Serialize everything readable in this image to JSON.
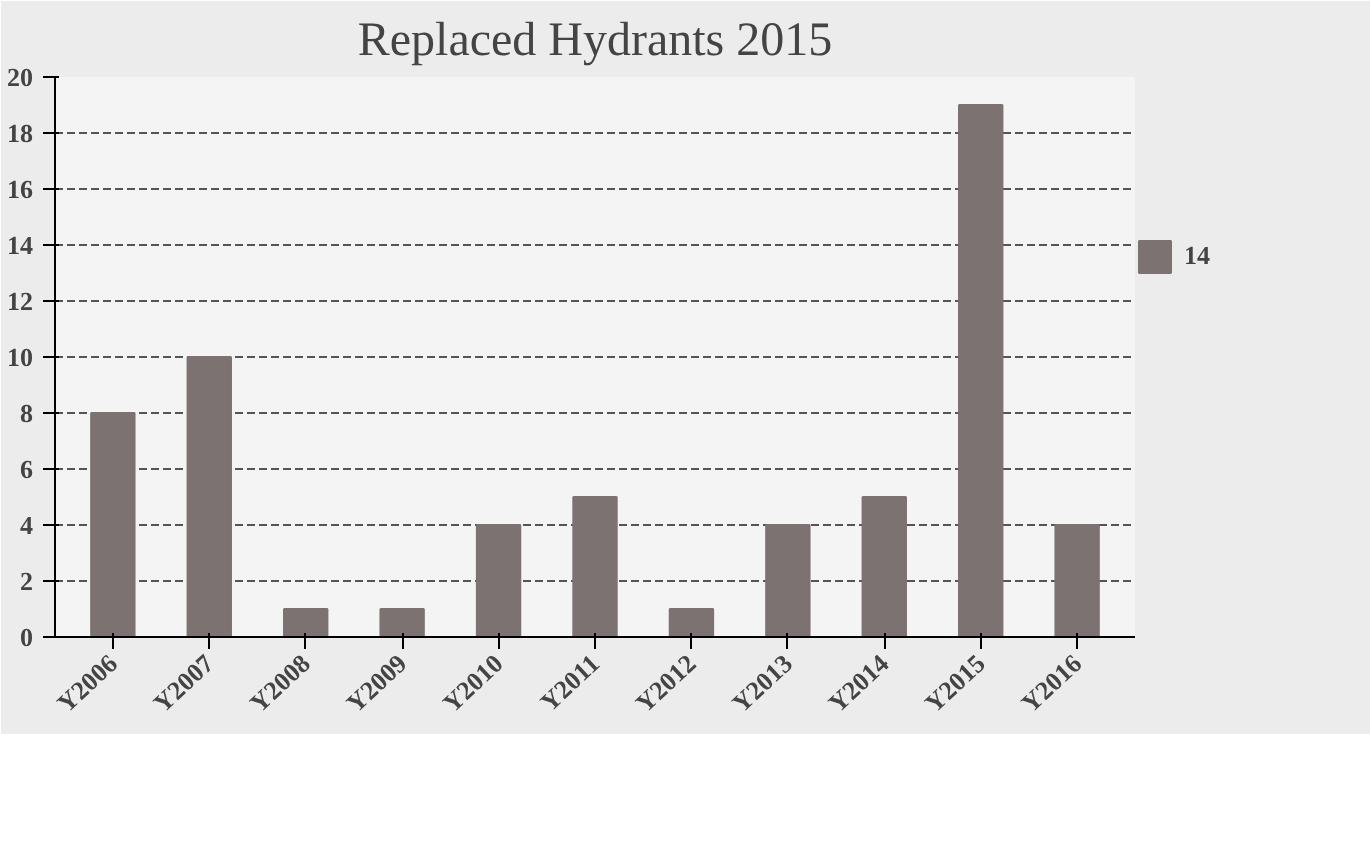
{
  "chart_data": {
    "type": "bar",
    "title": "Replaced Hydrants 2015",
    "categories": [
      "Y2006",
      "Y2007",
      "Y2008",
      "Y2009",
      "Y2010",
      "Y2011",
      "Y2012",
      "Y2013",
      "Y2014",
      "Y2015",
      "Y2016"
    ],
    "series": [
      {
        "name": "14",
        "color": "#7d7272",
        "values": [
          8,
          10,
          1,
          1,
          4,
          5,
          1,
          4,
          5,
          19,
          4
        ]
      }
    ],
    "ylim": [
      0,
      20
    ],
    "yticks": [
      0,
      2,
      4,
      6,
      8,
      10,
      12,
      14,
      16,
      18,
      20
    ],
    "grid": "y",
    "legend": "right"
  }
}
